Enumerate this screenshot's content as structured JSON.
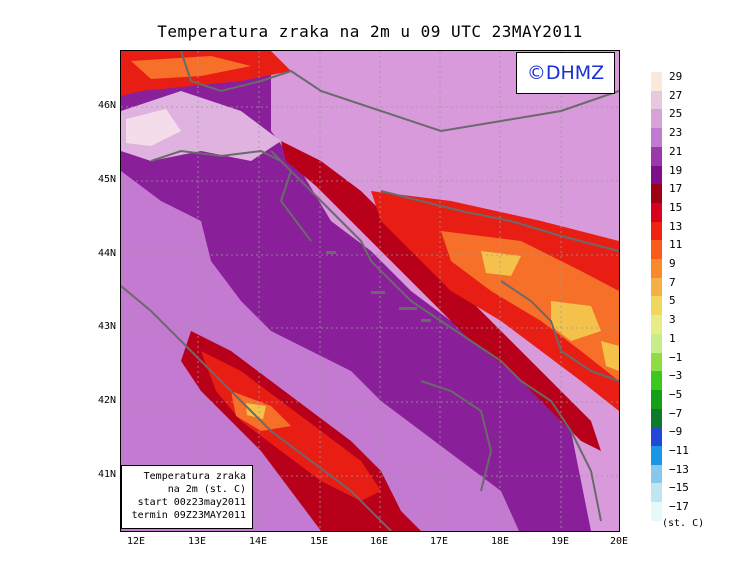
{
  "title": "Temperatura zraka na 2m u 09 UTC 23MAY2011",
  "logo": "©DHMZ",
  "info": {
    "line1": "Temperatura zraka",
    "line2": "na 2m (st. C)",
    "line3": "start 00z23may2011",
    "line4": "termin 09Z23MAY2011"
  },
  "lat_labels": [
    "46N",
    "45N",
    "44N",
    "43N",
    "42N",
    "41N"
  ],
  "lon_labels": [
    "12E",
    "13E",
    "14E",
    "15E",
    "16E",
    "17E",
    "18E",
    "19E",
    "20E"
  ],
  "legend": {
    "units": "(st. C)",
    "labels": [
      "29",
      "27",
      "25",
      "23",
      "21",
      "19",
      "17",
      "15",
      "13",
      "11",
      "9",
      "7",
      "5",
      "3",
      "1",
      "−1",
      "−3",
      "−5",
      "−7",
      "−9",
      "−11",
      "−13",
      "−15",
      "−17"
    ],
    "colors": [
      "#fbeadc",
      "#e8c8dc",
      "#d8a2d8",
      "#c27ad0",
      "#9a3aaa",
      "#7d0f8a",
      "#9e0016",
      "#d8001d",
      "#f02210",
      "#fa5a1a",
      "#f88a2c",
      "#f5b04a",
      "#f2d85a",
      "#e6ec86",
      "#c8ee8a",
      "#8fdc44",
      "#3cc81c",
      "#14a014",
      "#0c7c2a",
      "#2348d8",
      "#1a96e6",
      "#88c8ec",
      "#c0e6f2",
      "#e6f8fa"
    ]
  },
  "palette": {
    "sea": "#8a1f9a",
    "land_light": "#d89ada",
    "land_mid": "#c37ad0",
    "warm_1": "#b8001a",
    "warm_2": "#e81e14",
    "warm_3": "#f7702a",
    "warm_4": "#f4c24a",
    "coast": "#6a6a6a",
    "logo_text": "#1a2fd6"
  }
}
